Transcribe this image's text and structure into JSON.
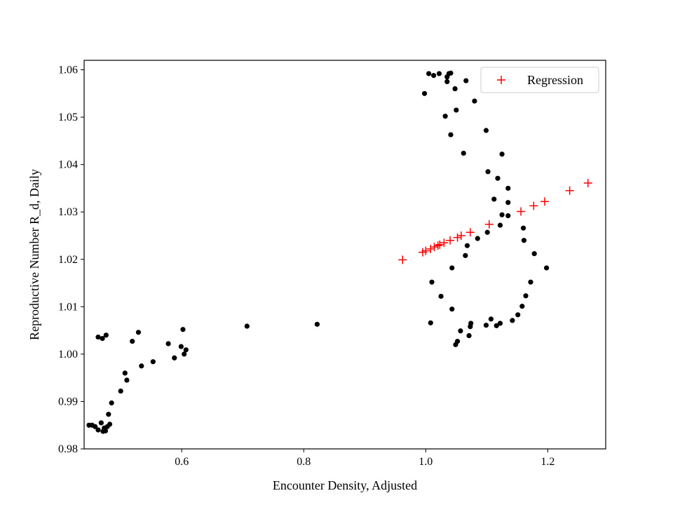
{
  "chart_data": {
    "type": "scatter",
    "title": "",
    "xlabel": "Encounter Density, Adjusted",
    "ylabel": "Reproductive Number R_d, Daily",
    "xlim": [
      0.44,
      1.295
    ],
    "ylim": [
      0.98,
      1.062
    ],
    "x_ticks": [
      0.6,
      0.8,
      1.0,
      1.2
    ],
    "x_tick_labels": [
      "0.6",
      "0.8",
      "1.0",
      "1.2"
    ],
    "y_ticks": [
      0.98,
      0.99,
      1.0,
      1.01,
      1.02,
      1.03,
      1.04,
      1.05,
      1.06
    ],
    "y_tick_labels": [
      "0.98",
      "0.99",
      "1.00",
      "1.01",
      "1.02",
      "1.03",
      "1.04",
      "1.05",
      "1.06"
    ],
    "grid": false,
    "legend_position": "top-right",
    "series": [
      {
        "marker": "dot",
        "color": "#000000",
        "points": [
          [
            0.448,
            0.985
          ],
          [
            0.453,
            0.985
          ],
          [
            0.458,
            0.9847
          ],
          [
            0.463,
            0.984
          ],
          [
            0.468,
            0.9855
          ],
          [
            0.471,
            0.9837
          ],
          [
            0.473,
            0.9844
          ],
          [
            0.475,
            0.9838
          ],
          [
            0.478,
            0.9847
          ],
          [
            0.482,
            0.9852
          ],
          [
            0.48,
            0.9873
          ],
          [
            0.485,
            0.9897
          ],
          [
            0.5,
            0.9922
          ],
          [
            0.51,
            0.9945
          ],
          [
            0.507,
            0.996
          ],
          [
            0.534,
            0.9975
          ],
          [
            0.553,
            0.9984
          ],
          [
            0.588,
            0.9992
          ],
          [
            0.604,
            1.0
          ],
          [
            0.607,
            1.0009
          ],
          [
            0.599,
            1.0016
          ],
          [
            0.578,
            1.0022
          ],
          [
            0.519,
            1.0027
          ],
          [
            0.529,
            1.0046
          ],
          [
            0.602,
            1.0052
          ],
          [
            0.463,
            1.0036
          ],
          [
            0.47,
            1.0033
          ],
          [
            0.476,
            1.004
          ],
          [
            0.707,
            1.0059
          ],
          [
            0.822,
            1.0063
          ],
          [
            1.008,
            1.0066
          ],
          [
            1.01,
            1.0152
          ],
          [
            1.025,
            1.0122
          ],
          [
            1.043,
            1.0095
          ],
          [
            1.043,
            1.0182
          ],
          [
            1.065,
            1.0208
          ],
          [
            1.068,
            1.0229
          ],
          [
            1.085,
            1.0244
          ],
          [
            1.101,
            1.0257
          ],
          [
            1.122,
            1.0272
          ],
          [
            1.125,
            1.0294
          ],
          [
            1.135,
            1.0292
          ],
          [
            1.112,
            1.0327
          ],
          [
            1.135,
            1.032
          ],
          [
            1.135,
            1.035
          ],
          [
            1.118,
            1.0371
          ],
          [
            1.102,
            1.0385
          ],
          [
            1.125,
            1.0422
          ],
          [
            1.062,
            1.0424
          ],
          [
            1.099,
            1.0472
          ],
          [
            1.041,
            1.0463
          ],
          [
            1.032,
            1.0502
          ],
          [
            1.05,
            1.0515
          ],
          [
            1.08,
            1.0534
          ],
          [
            0.998,
            1.055
          ],
          [
            1.048,
            1.056
          ],
          [
            1.035,
            1.0575
          ],
          [
            1.066,
            1.0577
          ],
          [
            1.035,
            1.0585
          ],
          [
            1.013,
            1.0588
          ],
          [
            1.005,
            1.0592
          ],
          [
            1.022,
            1.0592
          ],
          [
            1.038,
            1.0592
          ],
          [
            1.041,
            1.0593
          ],
          [
            1.16,
            1.0266
          ],
          [
            1.161,
            1.024
          ],
          [
            1.178,
            1.0212
          ],
          [
            1.198,
            1.0182
          ],
          [
            1.172,
            1.0152
          ],
          [
            1.164,
            1.0123
          ],
          [
            1.158,
            1.0101
          ],
          [
            1.151,
            1.0083
          ],
          [
            1.142,
            1.0071
          ],
          [
            1.122,
            1.0065
          ],
          [
            1.116,
            1.006
          ],
          [
            1.107,
            1.0074
          ],
          [
            1.099,
            1.0061
          ],
          [
            1.073,
            1.0058
          ],
          [
            1.074,
            1.0065
          ],
          [
            1.071,
            1.0039
          ],
          [
            1.057,
            1.0049
          ],
          [
            1.052,
            1.0027
          ],
          [
            1.049,
            1.002
          ]
        ]
      },
      {
        "name": "Regression",
        "marker": "plus",
        "color": "#ff0000",
        "points": [
          [
            0.962,
            1.0199
          ],
          [
            0.995,
            1.0215
          ],
          [
            1.0,
            1.0218
          ],
          [
            1.008,
            1.0222
          ],
          [
            1.014,
            1.0226
          ],
          [
            1.02,
            1.0229
          ],
          [
            1.023,
            1.0231
          ],
          [
            1.03,
            1.0235
          ],
          [
            1.04,
            1.024
          ],
          [
            1.052,
            1.0246
          ],
          [
            1.058,
            1.025
          ],
          [
            1.073,
            1.0257
          ],
          [
            1.104,
            1.0274
          ],
          [
            1.156,
            1.0301
          ],
          [
            1.177,
            1.0313
          ],
          [
            1.195,
            1.0322
          ],
          [
            1.236,
            1.0345
          ],
          [
            1.266,
            1.0361
          ]
        ]
      }
    ]
  }
}
